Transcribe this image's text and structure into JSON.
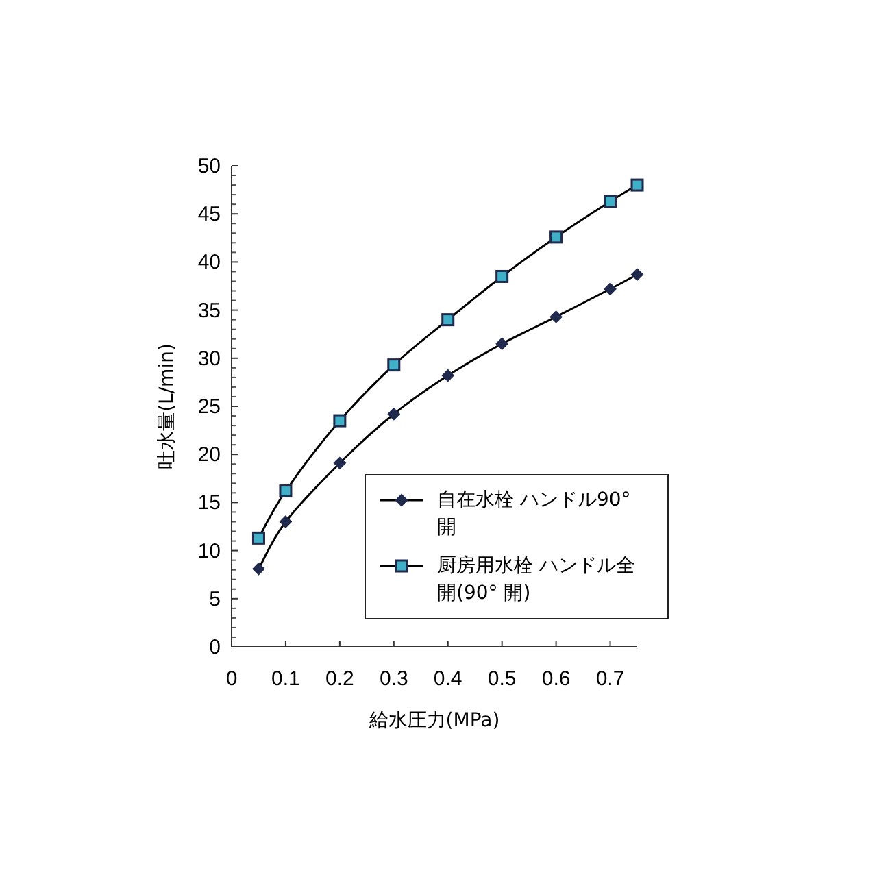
{
  "chart_data": {
    "type": "line",
    "xlabel": "給水圧力(MPa)",
    "ylabel": "吐水量(L/min)",
    "x": [
      0.05,
      0.1,
      0.2,
      0.3,
      0.4,
      0.5,
      0.6,
      0.7,
      0.75
    ],
    "series": [
      {
        "name": "自在水栓 ハンドル90° 開",
        "color": "#1f2a4d",
        "marker": "diamond",
        "values": [
          8.1,
          13.0,
          19.1,
          24.2,
          28.2,
          31.5,
          34.3,
          37.2,
          38.7
        ]
      },
      {
        "name": "厨房用水栓 ハンドル全開(90° 開)",
        "color": "#3fb0c8",
        "marker": "square",
        "values": [
          11.3,
          16.2,
          23.5,
          29.3,
          34.0,
          38.5,
          42.6,
          46.3,
          48.0
        ]
      }
    ],
    "xlim": [
      0,
      0.75
    ],
    "ylim": [
      0,
      50
    ],
    "xticks": [
      0,
      0.1,
      0.2,
      0.3,
      0.4,
      0.5,
      0.6,
      0.7
    ],
    "yticks": [
      0,
      5,
      10,
      15,
      20,
      25,
      30,
      35,
      40,
      45,
      50
    ],
    "grid": false,
    "legend": "bottom right",
    "line_style": "solid"
  }
}
